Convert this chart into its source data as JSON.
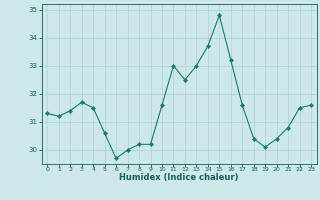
{
  "x": [
    0,
    1,
    2,
    3,
    4,
    5,
    6,
    7,
    8,
    9,
    10,
    11,
    12,
    13,
    14,
    15,
    16,
    17,
    18,
    19,
    20,
    21,
    22,
    23
  ],
  "y": [
    31.3,
    31.2,
    31.4,
    31.7,
    31.5,
    30.6,
    29.7,
    30.0,
    30.2,
    30.2,
    31.6,
    33.0,
    32.5,
    33.0,
    33.7,
    34.8,
    33.2,
    31.6,
    30.4,
    30.1,
    30.4,
    30.8,
    31.5,
    31.6
  ],
  "xlabel": "Humidex (Indice chaleur)",
  "line_color": "#1a7a6a",
  "bg_color": "#cce8e8",
  "grid_color": "#b0d0d0",
  "tick_color": "#1a5c5c",
  "label_color": "#1a5c5c",
  "ylim": [
    29.5,
    35.2
  ],
  "yticks": [
    30,
    31,
    32,
    33,
    34,
    35
  ],
  "xticks": [
    0,
    1,
    2,
    3,
    4,
    5,
    6,
    7,
    8,
    9,
    10,
    11,
    12,
    13,
    14,
    15,
    16,
    17,
    18,
    19,
    20,
    21,
    22,
    23
  ]
}
